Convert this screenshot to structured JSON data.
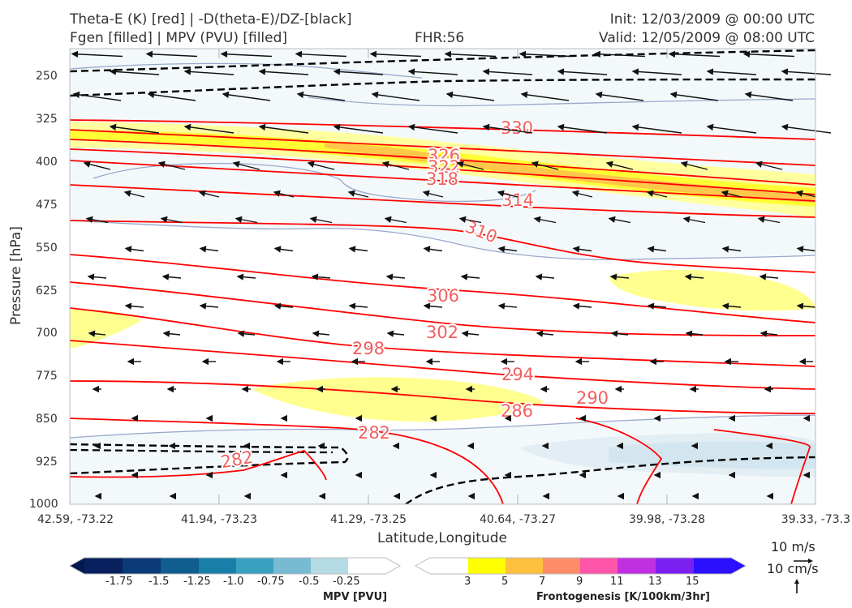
{
  "header": {
    "title_line1": "Theta-E (K) [red] | -D(theta-E)/DZ-[black]",
    "title_line2": "Fgen [filled] | MPV (PVU) [filled]",
    "fhr": "FHR:56",
    "init": "Init: 12/03/2009 @ 00:00 UTC",
    "valid": "Valid: 12/05/2009 @ 08:00 UTC"
  },
  "colors": {
    "theta_e": "#ff0000",
    "stability": "#000000",
    "contour_label": "#f06060",
    "mpv_outline": "#9aa8cc",
    "fgen": [
      "#ffff00",
      "#ffbf3f",
      "#ff8c69",
      "#ff55aa",
      "#c030e0",
      "#7b20f0",
      "#2a10ff"
    ],
    "mpv": [
      "#08215e",
      "#0b3a78",
      "#0f5e8f",
      "#1a7fa8",
      "#3aa0c0",
      "#77bad2",
      "#b4dbe6"
    ]
  },
  "chart_data": {
    "type": "cross-section",
    "xlabel": "Latitude,Longitude",
    "ylabel": "Pressure [hPa]",
    "x_ticks": [
      "42.59, -73.22",
      "41.94, -73.23",
      "41.29, -73.25",
      "40.64, -73.27",
      "39.98, -73.28",
      "39.33, -73.3"
    ],
    "y_ticks": [
      250,
      325,
      400,
      475,
      550,
      625,
      700,
      775,
      850,
      925,
      1000
    ],
    "ylim": [
      1000,
      190
    ],
    "theta_e_levels": [
      330,
      326,
      322,
      318,
      314,
      310,
      306,
      302,
      298,
      294,
      290,
      286,
      282,
      282
    ],
    "mpv_colorbar": {
      "title": "MPV [PVU]",
      "ticks": [
        "-1.75",
        "-1.5",
        "-1.25",
        "-1.0",
        "-0.75",
        "-0.5",
        "-0.25"
      ]
    },
    "fgen_colorbar": {
      "title": "Frontogenesis [K/100km/3hr]",
      "ticks": [
        "3",
        "5",
        "7",
        "9",
        "11",
        "13",
        "15"
      ]
    },
    "wind_reference": {
      "horizontal": "10 m/s",
      "vertical": "10 cm/s"
    }
  }
}
